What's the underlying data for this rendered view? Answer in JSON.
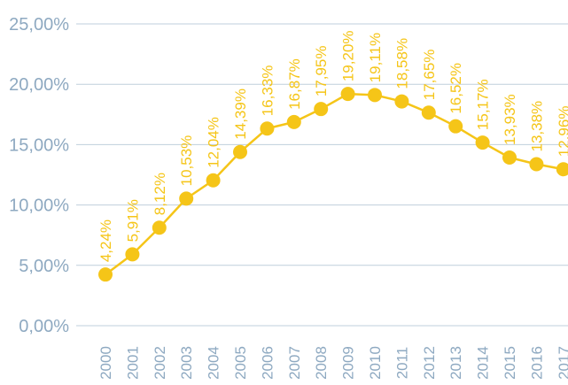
{
  "colors": {
    "series": "#f5c518",
    "grid": "#bfcfdc",
    "axis_text": "#8ea9c1"
  },
  "chart_data": {
    "type": "line",
    "title": "",
    "xlabel": "",
    "ylabel": "",
    "grid": true,
    "ylim": [
      0,
      25
    ],
    "y_ticks": [
      "0,00%",
      "5,00%",
      "10,00%",
      "15,00%",
      "20,00%",
      "25,00%"
    ],
    "categories": [
      "2000",
      "2001",
      "2002",
      "2003",
      "2004",
      "2005",
      "2006",
      "2007",
      "2008",
      "2009",
      "2010",
      "2011",
      "2012",
      "2013",
      "2014",
      "2015",
      "2016",
      "2017"
    ],
    "series": [
      {
        "values": [
          4.24,
          5.91,
          8.12,
          10.53,
          12.04,
          14.39,
          16.33,
          16.87,
          17.95,
          19.2,
          19.11,
          18.58,
          17.65,
          16.52,
          15.17,
          13.93,
          13.38,
          12.96
        ],
        "labels": [
          "4,24%",
          "5,91%",
          "8,12%",
          "10,53%",
          "12,04%",
          "14,39%",
          "16,33%",
          "16,87%",
          "17,95%",
          "19,20%",
          "19,11%",
          "18,58%",
          "17,65%",
          "16,52%",
          "15,17%",
          "13,93%",
          "13,38%",
          "12,96%"
        ]
      }
    ]
  }
}
